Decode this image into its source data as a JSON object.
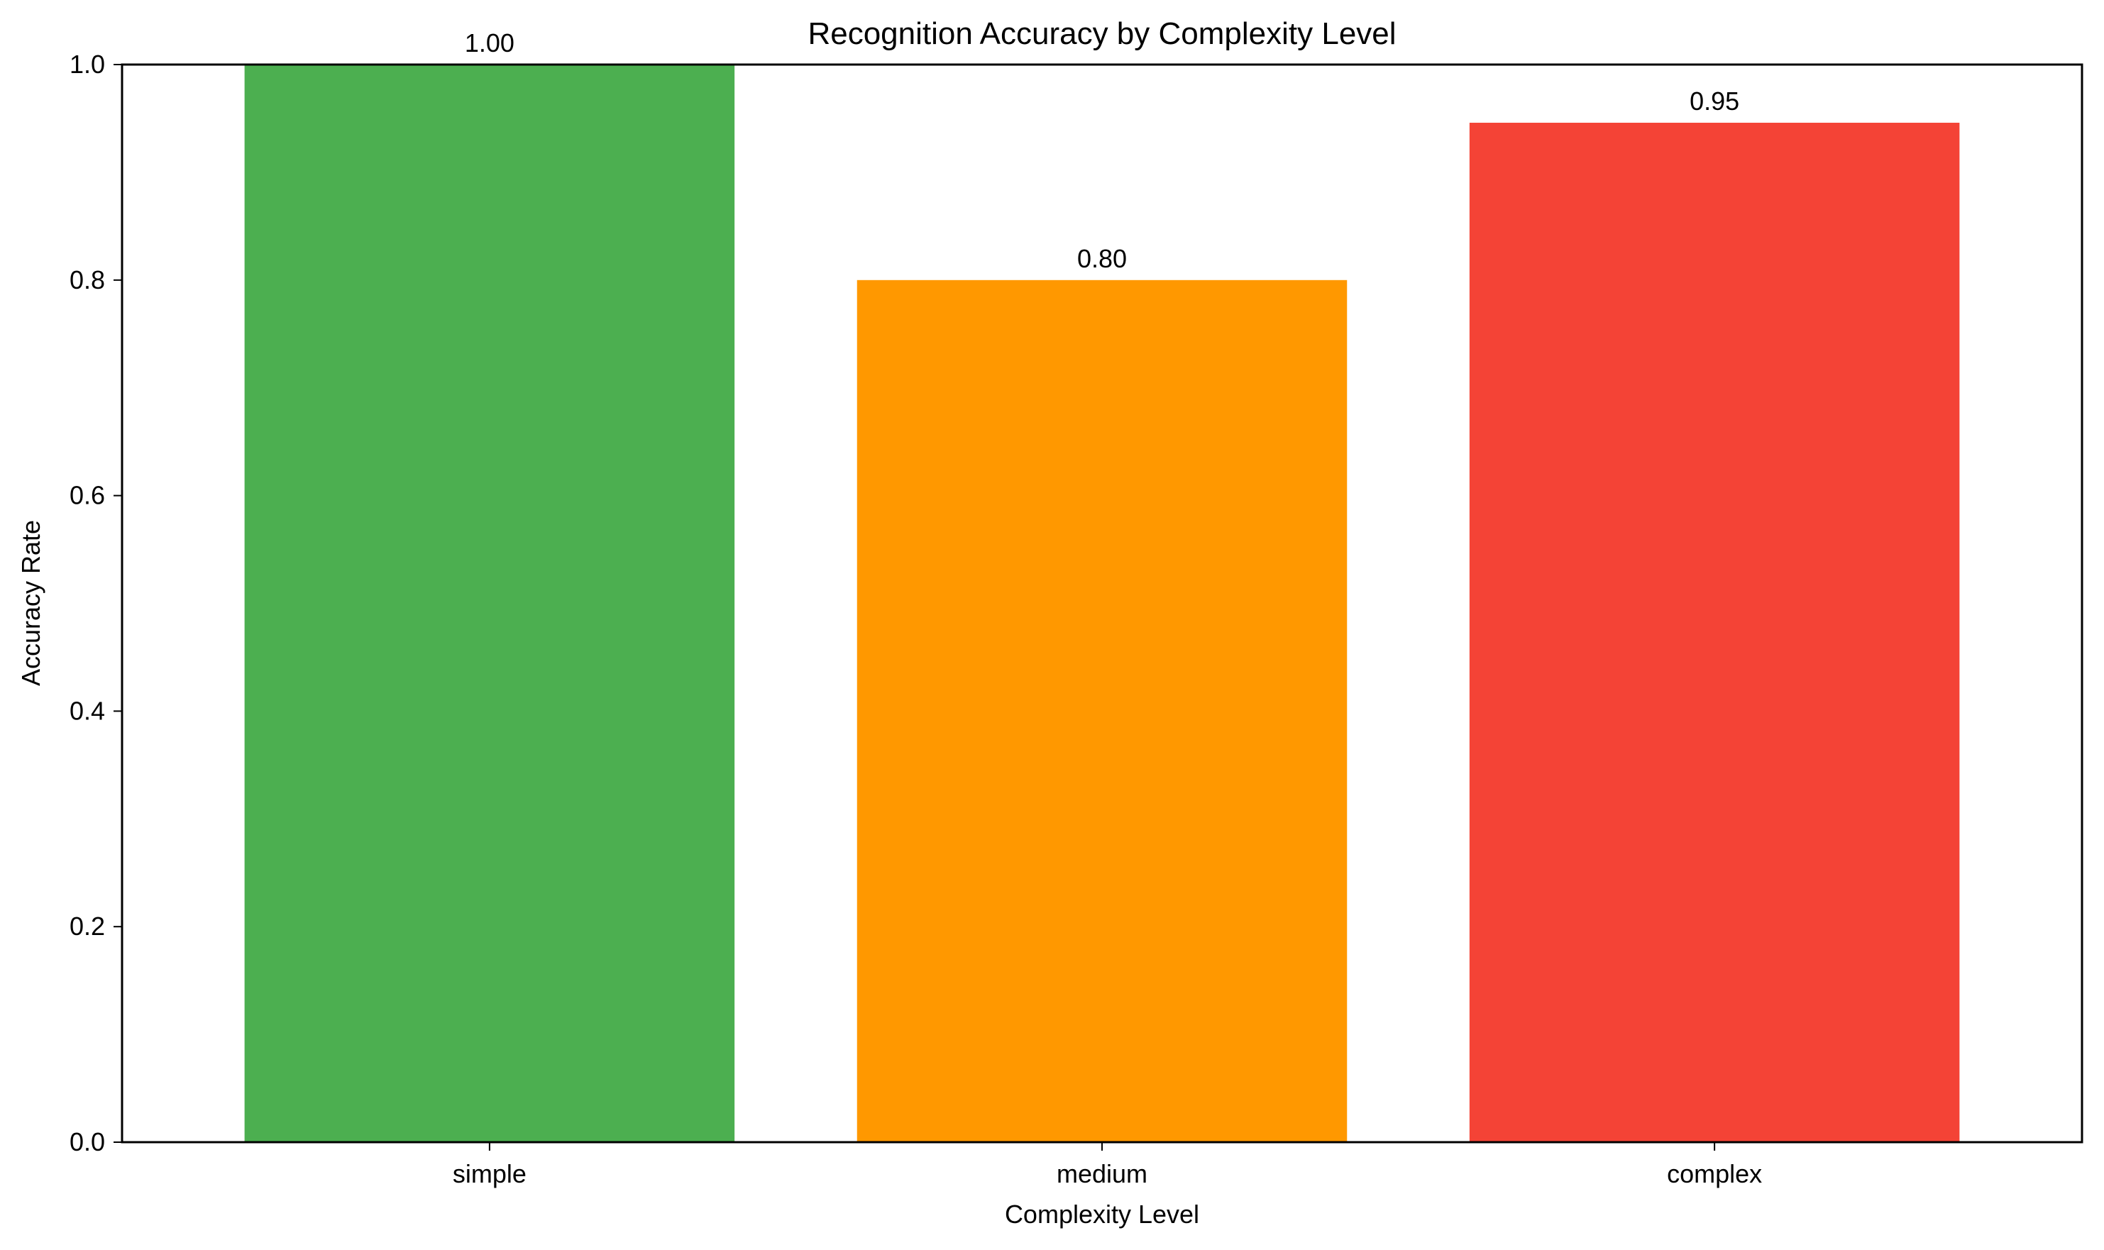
{
  "chart_data": {
    "type": "bar",
    "title": "Recognition Accuracy by Complexity Level",
    "xlabel": "Complexity Level",
    "ylabel": "Accuracy Rate",
    "categories": [
      "simple",
      "medium",
      "complex"
    ],
    "values": [
      1.0,
      0.8,
      0.946
    ],
    "data_labels": [
      "1.00",
      "0.80",
      "0.95"
    ],
    "colors": [
      "#4CAF50",
      "#FF9800",
      "#F44336"
    ],
    "ylim": [
      0,
      1.0
    ],
    "yticks": [
      0.0,
      0.2,
      0.4,
      0.6,
      0.8,
      1.0
    ],
    "ytick_labels": [
      "0.0",
      "0.2",
      "0.4",
      "0.6",
      "0.8",
      "1.0"
    ],
    "grid": false,
    "legend": "none"
  }
}
